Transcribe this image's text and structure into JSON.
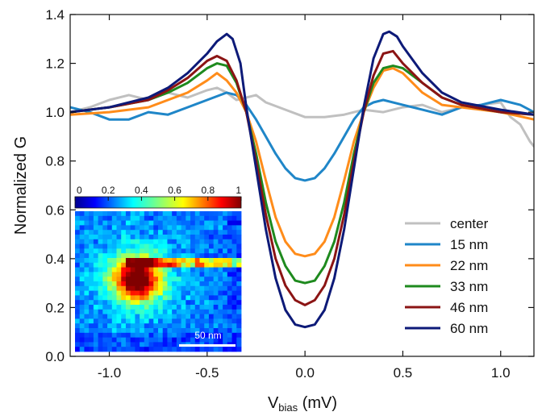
{
  "chart_data": {
    "type": "line",
    "title": "",
    "xlabel_main": "V",
    "xlabel_sub": "bias",
    "xlabel_unit": " (mV)",
    "ylabel": "Normalized G",
    "xlim": [
      -1.2,
      1.17
    ],
    "ylim": [
      0.0,
      1.4
    ],
    "xticks": [
      -1.0,
      -0.5,
      0.0,
      0.5,
      1.0
    ],
    "xtick_labels": [
      "-1.0",
      "-0.5",
      "0.0",
      "0.5",
      "1.0"
    ],
    "yticks": [
      0.0,
      0.2,
      0.4,
      0.6,
      0.8,
      1.0,
      1.2,
      1.4
    ],
    "ytick_labels": [
      "0.0",
      "0.2",
      "0.4",
      "0.6",
      "0.8",
      "1.0",
      "1.2",
      "1.4"
    ],
    "grid": false,
    "legend_position": "lower-right",
    "series": [
      {
        "name": "center",
        "color": "#c0c0c0",
        "x": [
          -1.2,
          -1.1,
          -1.0,
          -0.9,
          -0.8,
          -0.7,
          -0.6,
          -0.5,
          -0.45,
          -0.4,
          -0.35,
          -0.3,
          -0.25,
          -0.2,
          -0.1,
          0.0,
          0.1,
          0.2,
          0.3,
          0.4,
          0.5,
          0.6,
          0.7,
          0.8,
          0.9,
          1.0,
          1.05,
          1.1,
          1.15,
          1.17
        ],
        "y": [
          1.0,
          1.02,
          1.05,
          1.07,
          1.05,
          1.08,
          1.06,
          1.09,
          1.1,
          1.08,
          1.05,
          1.06,
          1.07,
          1.04,
          1.01,
          0.98,
          0.98,
          0.99,
          1.01,
          1.0,
          1.02,
          1.03,
          1.0,
          1.02,
          1.03,
          1.04,
          0.98,
          0.95,
          0.88,
          0.86
        ]
      },
      {
        "name": "15 nm",
        "color": "#1f86c8",
        "x": [
          -1.2,
          -1.1,
          -1.0,
          -0.9,
          -0.8,
          -0.7,
          -0.6,
          -0.5,
          -0.4,
          -0.35,
          -0.3,
          -0.25,
          -0.2,
          -0.15,
          -0.1,
          -0.05,
          0.0,
          0.05,
          0.1,
          0.15,
          0.2,
          0.25,
          0.3,
          0.35,
          0.4,
          0.5,
          0.6,
          0.7,
          0.8,
          0.9,
          1.0,
          1.1,
          1.17
        ],
        "y": [
          1.02,
          1.0,
          0.97,
          0.97,
          1.0,
          0.99,
          1.02,
          1.05,
          1.08,
          1.07,
          1.03,
          0.97,
          0.9,
          0.83,
          0.77,
          0.73,
          0.72,
          0.73,
          0.77,
          0.83,
          0.9,
          0.97,
          1.02,
          1.04,
          1.05,
          1.03,
          1.01,
          0.99,
          1.02,
          1.03,
          1.05,
          1.03,
          1.0
        ]
      },
      {
        "name": "22 nm",
        "color": "#ff8c1a",
        "x": [
          -1.2,
          -1.0,
          -0.8,
          -0.6,
          -0.5,
          -0.45,
          -0.4,
          -0.35,
          -0.3,
          -0.25,
          -0.2,
          -0.15,
          -0.1,
          -0.05,
          0.0,
          0.05,
          0.1,
          0.15,
          0.2,
          0.25,
          0.3,
          0.35,
          0.4,
          0.45,
          0.5,
          0.6,
          0.7,
          0.8,
          1.0,
          1.17
        ],
        "y": [
          0.99,
          1.0,
          1.02,
          1.08,
          1.13,
          1.16,
          1.13,
          1.08,
          1.0,
          0.88,
          0.72,
          0.57,
          0.47,
          0.42,
          0.41,
          0.42,
          0.47,
          0.57,
          0.72,
          0.88,
          1.0,
          1.1,
          1.17,
          1.18,
          1.16,
          1.08,
          1.03,
          1.02,
          1.0,
          0.97
        ]
      },
      {
        "name": "33 nm",
        "color": "#1e8a1e",
        "x": [
          -1.2,
          -1.0,
          -0.8,
          -0.7,
          -0.6,
          -0.5,
          -0.45,
          -0.4,
          -0.35,
          -0.3,
          -0.25,
          -0.2,
          -0.15,
          -0.1,
          -0.05,
          0.0,
          0.05,
          0.1,
          0.15,
          0.2,
          0.25,
          0.3,
          0.35,
          0.4,
          0.45,
          0.5,
          0.6,
          0.7,
          0.8,
          1.0,
          1.17
        ],
        "y": [
          1.0,
          1.02,
          1.05,
          1.08,
          1.12,
          1.18,
          1.2,
          1.19,
          1.12,
          1.0,
          0.83,
          0.63,
          0.47,
          0.37,
          0.31,
          0.3,
          0.31,
          0.37,
          0.47,
          0.63,
          0.83,
          1.0,
          1.12,
          1.18,
          1.19,
          1.18,
          1.12,
          1.06,
          1.03,
          1.0,
          0.99
        ]
      },
      {
        "name": "46 nm",
        "color": "#8b1414",
        "x": [
          -1.2,
          -1.0,
          -0.8,
          -0.7,
          -0.6,
          -0.5,
          -0.45,
          -0.4,
          -0.35,
          -0.3,
          -0.25,
          -0.2,
          -0.15,
          -0.1,
          -0.05,
          0.0,
          0.05,
          0.1,
          0.15,
          0.2,
          0.25,
          0.3,
          0.35,
          0.4,
          0.45,
          0.5,
          0.6,
          0.7,
          0.8,
          1.0,
          1.17
        ],
        "y": [
          1.0,
          1.02,
          1.05,
          1.09,
          1.14,
          1.21,
          1.23,
          1.21,
          1.13,
          1.0,
          0.8,
          0.58,
          0.4,
          0.29,
          0.23,
          0.21,
          0.23,
          0.29,
          0.4,
          0.58,
          0.8,
          1.0,
          1.15,
          1.24,
          1.25,
          1.2,
          1.12,
          1.06,
          1.03,
          1.0,
          0.99
        ]
      },
      {
        "name": "60 nm",
        "color": "#0d1a78",
        "x": [
          -1.2,
          -1.0,
          -0.8,
          -0.7,
          -0.6,
          -0.5,
          -0.45,
          -0.4,
          -0.37,
          -0.33,
          -0.3,
          -0.25,
          -0.2,
          -0.15,
          -0.1,
          -0.05,
          0.0,
          0.05,
          0.1,
          0.15,
          0.2,
          0.25,
          0.3,
          0.35,
          0.4,
          0.43,
          0.47,
          0.5,
          0.6,
          0.7,
          0.8,
          1.0,
          1.17
        ],
        "y": [
          1.0,
          1.02,
          1.06,
          1.1,
          1.16,
          1.24,
          1.29,
          1.32,
          1.3,
          1.2,
          1.02,
          0.77,
          0.52,
          0.32,
          0.19,
          0.13,
          0.12,
          0.13,
          0.19,
          0.32,
          0.52,
          0.77,
          1.02,
          1.22,
          1.32,
          1.33,
          1.31,
          1.27,
          1.16,
          1.08,
          1.04,
          1.01,
          0.99
        ]
      }
    ],
    "inset": {
      "type": "heatmap",
      "colorbar_ticks": [
        "0",
        "0.2",
        "0.4",
        "0.6",
        "0.8",
        "1"
      ],
      "colorbar_values": [
        0,
        0.2,
        0.4,
        0.6,
        0.8,
        1.0
      ],
      "colormap": "jet",
      "scale_bar_label": "50 nm"
    }
  }
}
